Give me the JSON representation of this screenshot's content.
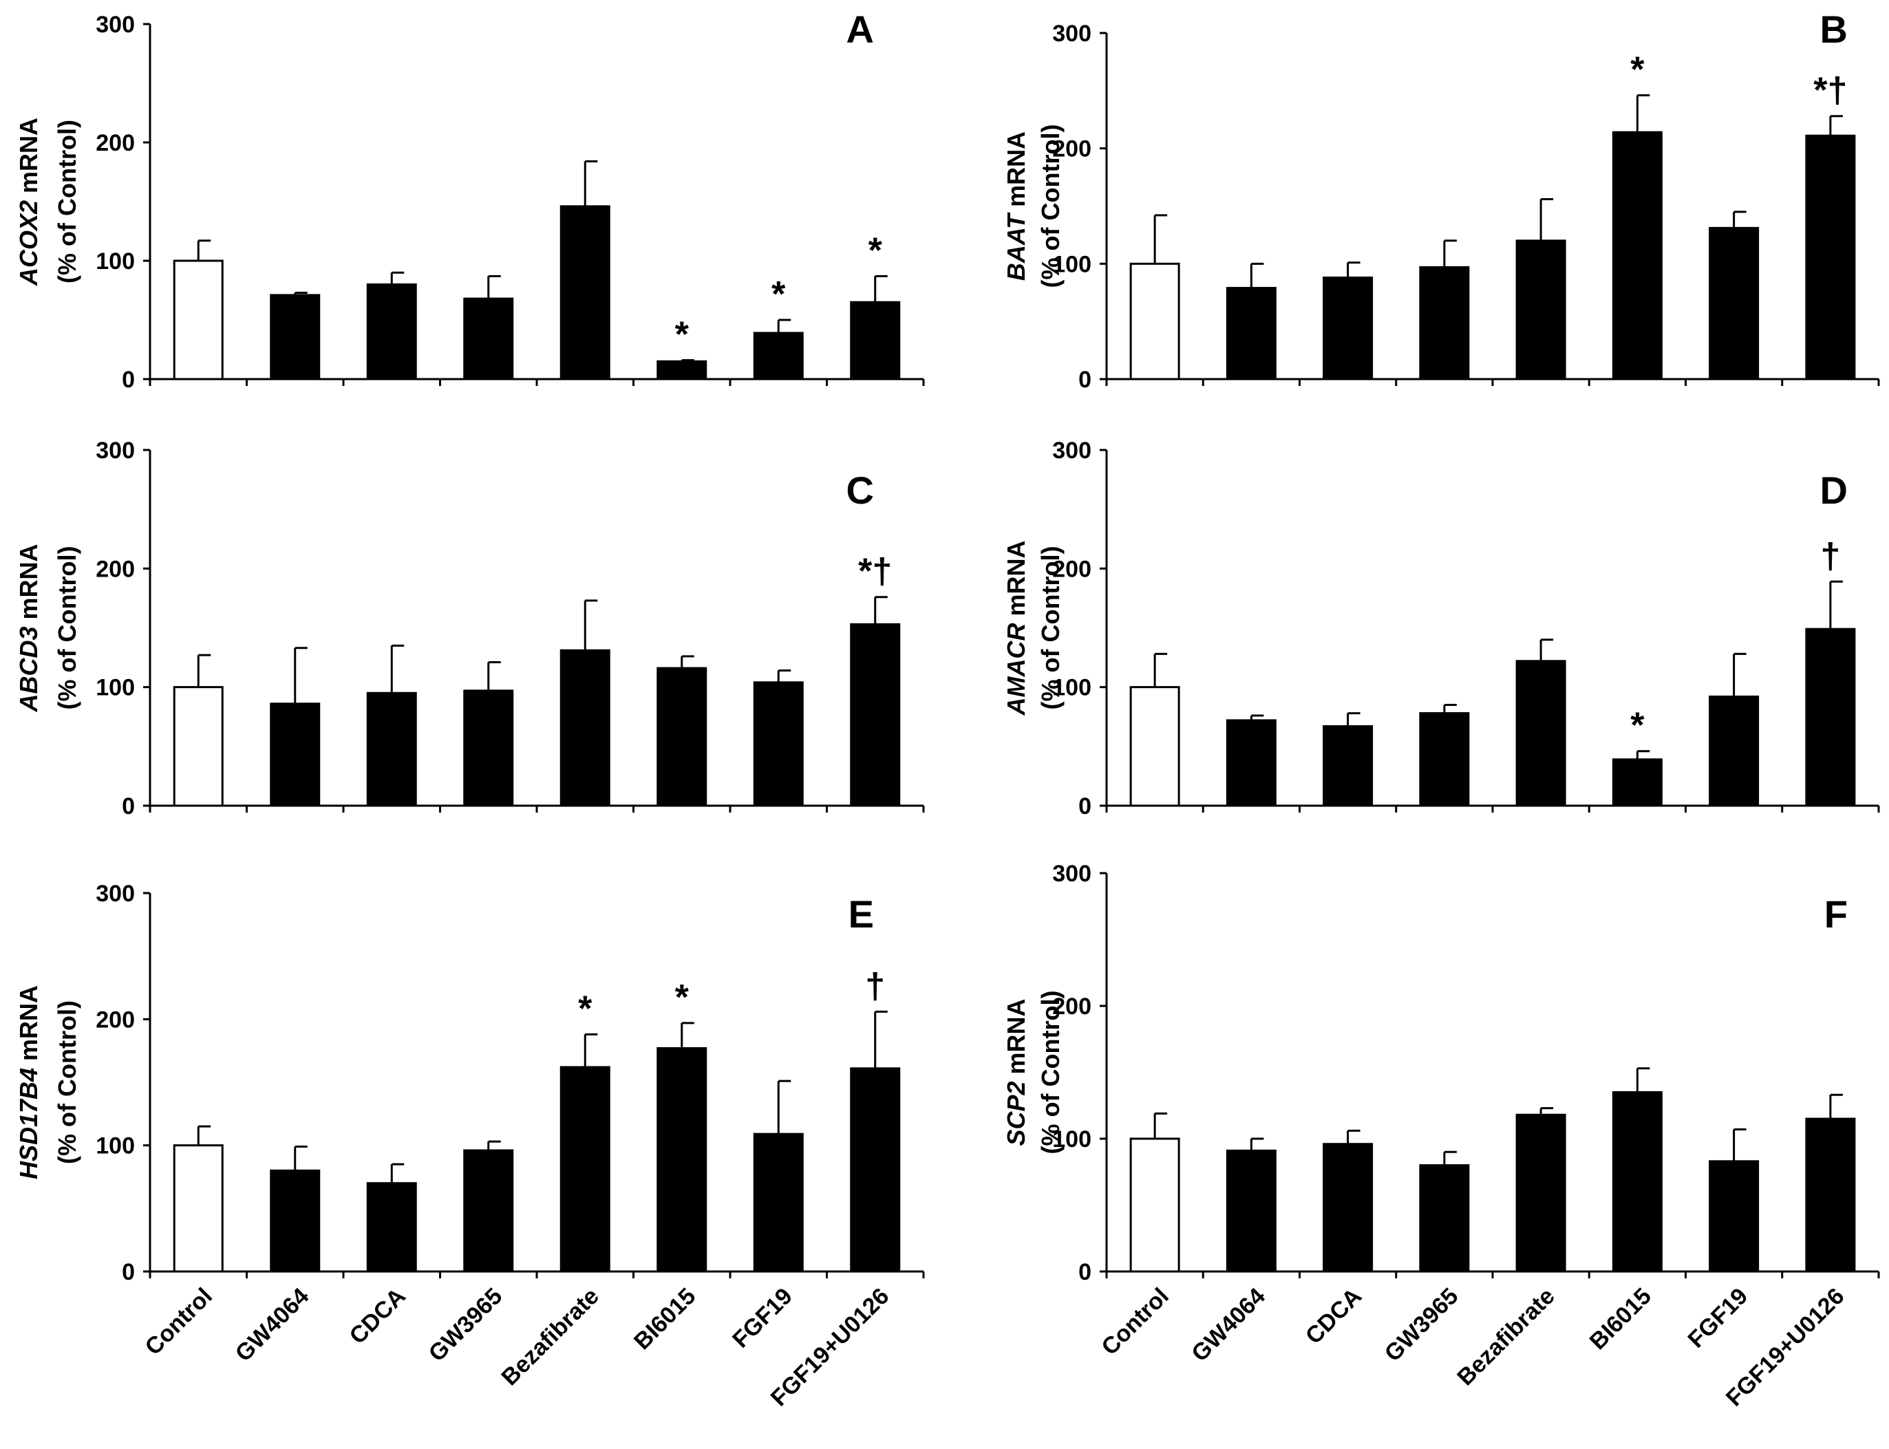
{
  "figure": {
    "categories": [
      "Control",
      "GW4064",
      "CDCA",
      "GW3965",
      "Bezafibrate",
      "BI6015",
      "FGF19",
      "FGF19+U0126"
    ],
    "colors": {
      "control_bar": "#ffffff",
      "treatment_bar": "#000000",
      "axis": "#000000"
    }
  },
  "chart_data": [
    {
      "panel": "A",
      "type": "bar",
      "gene": "ACOX2",
      "ylabel_suffix": " mRNA",
      "ylabel_line2": "(% of Control)",
      "ylim": [
        0,
        300
      ],
      "yticks": [
        0,
        100,
        200,
        300
      ],
      "categories": [
        "Control",
        "GW4064",
        "CDCA",
        "GW3965",
        "Bezafibrate",
        "BI6015",
        "FGF19",
        "FGF19+U0126"
      ],
      "values": [
        100,
        71,
        80,
        68,
        146,
        15,
        39,
        65
      ],
      "errors": [
        17,
        2,
        10,
        19,
        38,
        1,
        11,
        22
      ],
      "annotations": [
        "",
        "",
        "",
        "",
        "",
        "*",
        "*",
        "*"
      ]
    },
    {
      "panel": "B",
      "type": "bar",
      "gene": "BAAT",
      "ylabel_suffix": " mRNA",
      "ylabel_line2": "(% of Control)",
      "ylim": [
        0,
        300
      ],
      "yticks": [
        0,
        100,
        200,
        300
      ],
      "categories": [
        "Control",
        "GW4064",
        "CDCA",
        "GW3965",
        "Bezafibrate",
        "BI6015",
        "FGF19",
        "FGF19+U0126"
      ],
      "values": [
        100,
        79,
        88,
        97,
        120,
        214,
        131,
        211
      ],
      "errors": [
        42,
        21,
        13,
        23,
        36,
        32,
        14,
        17
      ],
      "annotations": [
        "",
        "",
        "",
        "",
        "",
        "*",
        "",
        "*†"
      ]
    },
    {
      "panel": "C",
      "type": "bar",
      "gene": "ABCD3",
      "ylabel_suffix": " mRNA",
      "ylabel_line2": "(% of Control)",
      "ylim": [
        0,
        300
      ],
      "yticks": [
        0,
        100,
        200,
        300
      ],
      "categories": [
        "Control",
        "GW4064",
        "CDCA",
        "GW3965",
        "Bezafibrate",
        "BI6015",
        "FGF19",
        "FGF19+U0126"
      ],
      "values": [
        100,
        86,
        95,
        97,
        131,
        116,
        104,
        153
      ],
      "errors": [
        27,
        47,
        40,
        24,
        42,
        10,
        10,
        23
      ],
      "annotations": [
        "",
        "",
        "",
        "",
        "",
        "",
        "",
        "*†"
      ]
    },
    {
      "panel": "D",
      "type": "bar",
      "gene": "AMACR",
      "ylabel_suffix": " mRNA",
      "ylabel_line2": "(% of Control)",
      "ylim": [
        0,
        300
      ],
      "yticks": [
        0,
        100,
        200,
        300
      ],
      "categories": [
        "Control",
        "GW4064",
        "CDCA",
        "GW3965",
        "Bezafibrate",
        "BI6015",
        "FGF19",
        "FGF19+U0126"
      ],
      "values": [
        100,
        72,
        67,
        78,
        122,
        39,
        92,
        149
      ],
      "errors": [
        28,
        4,
        11,
        7,
        18,
        7,
        36,
        40
      ],
      "annotations": [
        "",
        "",
        "",
        "",
        "",
        "*",
        "",
        "†"
      ]
    },
    {
      "panel": "E",
      "type": "bar",
      "gene": "HSD17B4",
      "ylabel_suffix": " mRNA",
      "ylabel_line2": "(% of Control)",
      "ylim": [
        0,
        300
      ],
      "yticks": [
        0,
        100,
        200,
        300
      ],
      "categories": [
        "Control",
        "GW4064",
        "CDCA",
        "GW3965",
        "Bezafibrate",
        "BI6015",
        "FGF19",
        "FGF19+U0126"
      ],
      "values": [
        100,
        80,
        70,
        96,
        162,
        177,
        109,
        161
      ],
      "errors": [
        15,
        19,
        15,
        7,
        26,
        20,
        42,
        45
      ],
      "annotations": [
        "",
        "",
        "",
        "",
        "*",
        "*",
        "",
        "†"
      ]
    },
    {
      "panel": "F",
      "type": "bar",
      "gene": "SCP2",
      "ylabel_suffix": " mRNA",
      "ylabel_line2": "(% of Control)",
      "ylim": [
        0,
        300
      ],
      "yticks": [
        0,
        100,
        200,
        300
      ],
      "categories": [
        "Control",
        "GW4064",
        "CDCA",
        "GW3965",
        "Bezafibrate",
        "BI6015",
        "FGF19",
        "FGF19+U0126"
      ],
      "values": [
        100,
        91,
        96,
        80,
        118,
        135,
        83,
        115
      ],
      "errors": [
        19,
        9,
        10,
        10,
        5,
        18,
        24,
        18
      ],
      "annotations": [
        "",
        "",
        "",
        "",
        "",
        "",
        "",
        ""
      ]
    }
  ]
}
